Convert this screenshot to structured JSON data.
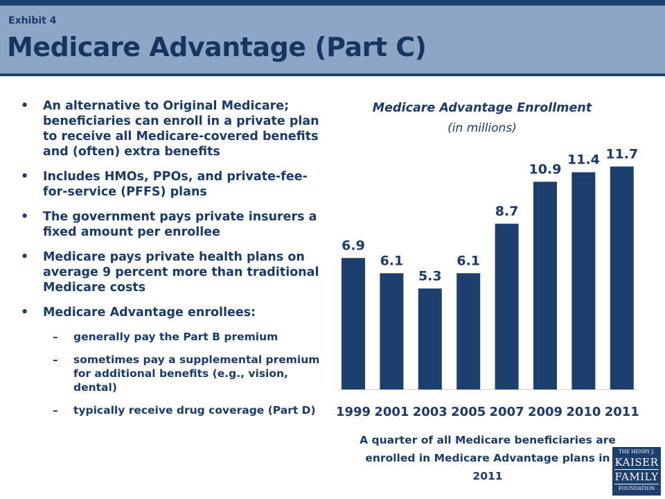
{
  "header": {
    "exhibit": "Exhibit 4",
    "title": "Medicare Advantage (Part C)"
  },
  "bullets": [
    {
      "text": "An alternative to Original Medicare; beneficiaries can enroll in a private plan to receive all Medicare-covered benefits and (often) extra benefits"
    },
    {
      "text": "Includes HMOs, PPOs, and private-fee-for-service (PFFS) plans"
    },
    {
      "text": "The government pays private insurers a fixed amount per enrollee"
    },
    {
      "text": "Medicare pays private health plans on average 9 percent more than traditional Medicare costs"
    },
    {
      "text": "Medicare Advantage enrollees:"
    }
  ],
  "sub_bullets": [
    {
      "text": "generally pay the Part B premium"
    },
    {
      "text": "sometimes pay a supplemental premium for additional benefits (e.g., vision, dental)"
    },
    {
      "text": "typically receive drug coverage (Part D)"
    }
  ],
  "chart_data": {
    "type": "bar",
    "title": "Medicare Advantage Enrollment",
    "subtitle": "(in millions)",
    "categories": [
      "1999",
      "2001",
      "2003",
      "2005",
      "2007",
      "2009",
      "2010",
      "2011"
    ],
    "values": [
      6.9,
      6.1,
      5.3,
      6.1,
      8.7,
      10.9,
      11.4,
      11.7
    ],
    "data_labels": [
      "6.9",
      "6.1",
      "5.3",
      "6.1",
      "8.7",
      "10.9",
      "11.4",
      "11.7"
    ],
    "ylim": [
      0,
      12
    ],
    "grid": false,
    "bar_color": "#1d3f6e"
  },
  "caption": "A quarter of all Medicare beneficiaries are enrolled in Medicare Advantage plans in 2011",
  "logo": {
    "line1": "THE HENRY J.",
    "line2": "KAISER",
    "line3": "FAMILY",
    "line4": "FOUNDATION"
  }
}
